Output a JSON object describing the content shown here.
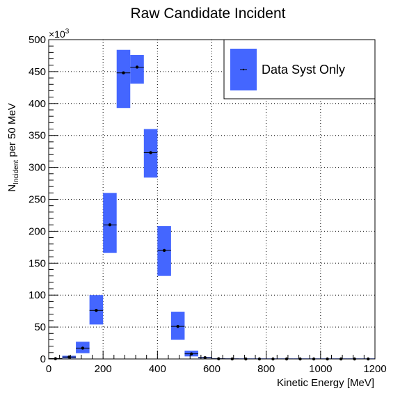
{
  "chart_data": {
    "type": "scatter",
    "title": "Raw Candidate Incident",
    "xlabel": "Kinetic Energy [MeV]",
    "ylabel_main": "N",
    "ylabel_sub": "Incident",
    "ylabel_rest": " per 50 MeV",
    "y_multiplier_base": "×10",
    "y_multiplier_exp": "3",
    "xlim": [
      0,
      1200
    ],
    "ylim": [
      0,
      500
    ],
    "x_ticks": [
      0,
      200,
      400,
      600,
      800,
      1000,
      1200
    ],
    "y_ticks": [
      0,
      50,
      100,
      150,
      200,
      250,
      300,
      350,
      400,
      450,
      500
    ],
    "grid": true,
    "legend_position": "top-right",
    "series": [
      {
        "name": "Data Syst Only",
        "color": "#4466ff",
        "bin_width": 50,
        "x": [
          25,
          75,
          125,
          175,
          225,
          275,
          325,
          375,
          425,
          475,
          525,
          575,
          625,
          675,
          725,
          775,
          825,
          875,
          925,
          975,
          1025,
          1075,
          1125,
          1175
        ],
        "y": [
          0.5,
          3,
          17,
          76,
          210,
          448,
          457,
          323,
          170,
          51,
          8,
          2,
          0.3,
          0.1,
          0,
          0,
          0,
          0,
          0,
          0,
          0,
          0,
          0,
          0
        ],
        "syst_low": [
          0.3,
          1,
          9,
          54,
          166,
          393,
          431,
          284,
          130,
          30,
          4,
          1,
          0.1,
          0,
          0,
          0,
          0,
          0,
          0,
          0,
          0,
          0,
          0,
          0
        ],
        "syst_high": [
          0.7,
          5,
          27,
          100,
          260,
          484,
          476,
          360,
          208,
          74,
          13,
          3,
          0.5,
          0.2,
          0,
          0,
          0,
          0,
          0,
          0,
          0,
          0,
          0,
          0
        ]
      }
    ]
  }
}
